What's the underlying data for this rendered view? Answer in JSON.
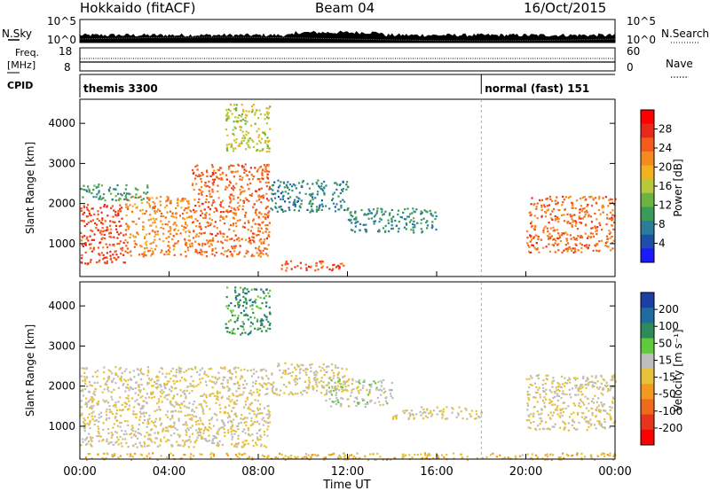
{
  "header": {
    "left_title": "Hokkaido (fitACF)",
    "center_title": "Beam 04",
    "date": "16/Oct/2015"
  },
  "noise_panel": {
    "left_label": "N.Sky",
    "right_label": "N.Search",
    "left_ticks": [
      "10^5",
      "10^0"
    ],
    "right_ticks": [
      "10^5",
      "10^0"
    ]
  },
  "freq_panel": {
    "label_line1": "Freq.",
    "label_line2": "[MHz]",
    "left_ticks": [
      "18",
      "8"
    ],
    "right_label": "Nave",
    "right_ticks": [
      "60",
      "0"
    ]
  },
  "cpid_panel": {
    "label": "CPID",
    "modes": [
      {
        "name": "themis 3300",
        "start_hour": 0
      },
      {
        "name": "normal (fast) 151",
        "start_hour": 18
      }
    ]
  },
  "colors": {
    "power_scale": [
      "#1a1aff",
      "#1e4fa8",
      "#2a7c99",
      "#3a9a5a",
      "#6db33f",
      "#b8c83a",
      "#f2b21e",
      "#f58a1e",
      "#f25b1c",
      "#e8281b",
      "#ff0000"
    ],
    "velocity_scale": [
      "#1c3fa5",
      "#1f6a9f",
      "#2e8b57",
      "#5fcb3a",
      "#bdbdbd",
      "#e6c23a",
      "#f29a1e",
      "#ef6a1a",
      "#e8341a",
      "#ff0000"
    ]
  },
  "chart_data": [
    {
      "type": "heatmap",
      "quantity": "power",
      "ylabel": "Slant Range [km]",
      "yticks": [
        1000,
        2000,
        3000,
        4000
      ],
      "ylim": [
        180,
        4600
      ],
      "xlim": [
        0,
        24
      ],
      "colorbar": {
        "label": "Power [dB]",
        "ticks": [
          "28",
          "24",
          "20",
          "16",
          "12",
          "8",
          "4"
        ],
        "range": [
          0,
          32
        ]
      },
      "regions": [
        {
          "t0": 0.0,
          "t1": 2.0,
          "r0": 500,
          "r1": 2000,
          "value": 26
        },
        {
          "t0": 2.0,
          "t1": 5.0,
          "r0": 700,
          "r1": 2200,
          "value": 22
        },
        {
          "t0": 5.0,
          "t1": 8.5,
          "r0": 700,
          "r1": 3000,
          "value": 24
        },
        {
          "t0": 0.0,
          "t1": 3.0,
          "r0": 2100,
          "r1": 2500,
          "value": 10
        },
        {
          "t0": 8.5,
          "t1": 12.0,
          "r0": 1800,
          "r1": 2600,
          "value": 8
        },
        {
          "t0": 12.0,
          "t1": 16.0,
          "r0": 1300,
          "r1": 1900,
          "value": 9
        },
        {
          "t0": 9.0,
          "t1": 12.0,
          "r0": 350,
          "r1": 600,
          "value": 25
        },
        {
          "t0": 20.0,
          "t1": 24.0,
          "r0": 800,
          "r1": 2200,
          "value": 24
        },
        {
          "t0": 6.5,
          "t1": 8.5,
          "r0": 3300,
          "r1": 4500,
          "value": 16
        }
      ]
    },
    {
      "type": "heatmap",
      "quantity": "velocity",
      "ylabel": "Slant Range [km]",
      "yticks": [
        1000,
        2000,
        3000,
        4000
      ],
      "ylim": [
        180,
        4600
      ],
      "xlim": [
        0,
        24
      ],
      "xticks": [
        "00:00",
        "04:00",
        "08:00",
        "12:00",
        "16:00",
        "20:00",
        "00:00"
      ],
      "xlabel": "Time UT",
      "colorbar": {
        "label": "Velocity [m s⁻¹]",
        "ticks": [
          "200",
          "100",
          "50",
          "15",
          "-15",
          "-50",
          "-100",
          "-200"
        ],
        "range": [
          -250,
          250
        ]
      },
      "regions": [
        {
          "t0": 0.0,
          "t1": 8.5,
          "r0": 500,
          "r1": 2500,
          "value": 0
        },
        {
          "t0": 8.5,
          "t1": 12.0,
          "r0": 1800,
          "r1": 2600,
          "value": 0
        },
        {
          "t0": 11.0,
          "t1": 14.0,
          "r0": 1500,
          "r1": 2200,
          "value": 30
        },
        {
          "t0": 14.0,
          "t1": 18.0,
          "r0": 1200,
          "r1": 1500,
          "value": 0
        },
        {
          "t0": 20.0,
          "t1": 24.0,
          "r0": 900,
          "r1": 2300,
          "value": 0
        },
        {
          "t0": 0.0,
          "t1": 24.0,
          "r0": 180,
          "r1": 350,
          "value": -40
        },
        {
          "t0": 6.5,
          "t1": 8.5,
          "r0": 3300,
          "r1": 4500,
          "value": 120
        }
      ]
    }
  ]
}
